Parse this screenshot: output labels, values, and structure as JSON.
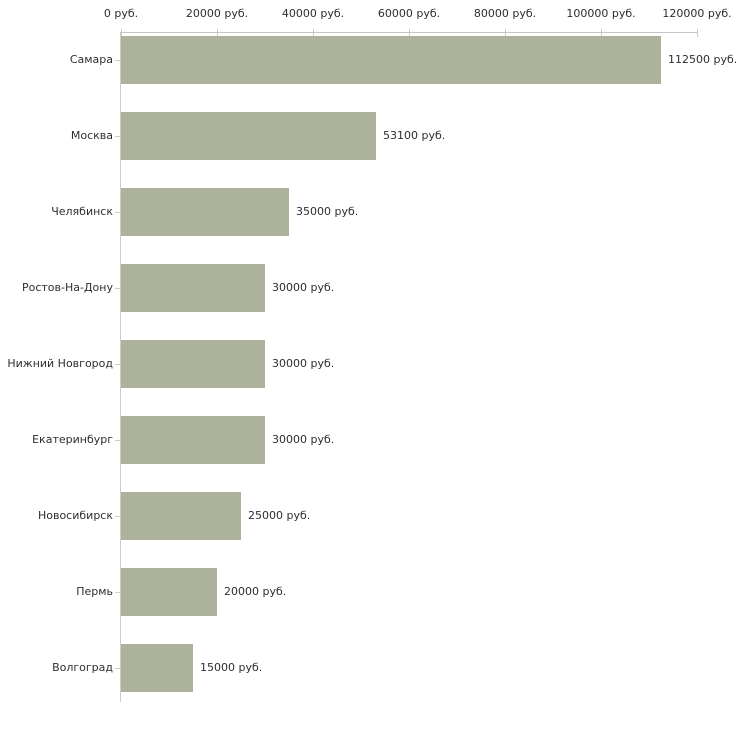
{
  "chart_data": {
    "type": "bar",
    "orientation": "horizontal",
    "title": "",
    "xlabel": "",
    "ylabel": "",
    "grid": false,
    "categories": [
      "Самара",
      "Москва",
      "Челябинск",
      "Ростов-На-Дону",
      "Нижний Новгород",
      "Екатеринбург",
      "Новосибирск",
      "Пермь",
      "Волгоград"
    ],
    "values": [
      112500,
      53100,
      35000,
      30000,
      30000,
      30000,
      25000,
      20000,
      15000
    ],
    "value_labels": [
      "112500 руб.",
      "53100 руб.",
      "35000 руб.",
      "30000 руб.",
      "30000 руб.",
      "30000 руб.",
      "25000 руб.",
      "20000 руб.",
      "15000 руб."
    ],
    "x_axis": {
      "position": "top",
      "xlim": [
        0,
        120000
      ],
      "ticks": [
        0,
        20000,
        40000,
        60000,
        80000,
        100000,
        120000
      ],
      "tick_labels": [
        "0 руб.",
        "20000 руб.",
        "40000 руб.",
        "60000 руб.",
        "80000 руб.",
        "100000 руб.",
        "120000 руб."
      ]
    },
    "legend": null
  },
  "colors": {
    "bar": "#adb39a",
    "axis_line": "#c6c6c6",
    "x_tick": "#ccd0a4",
    "y_axis": "#cccccc",
    "text": "#2e2e2e",
    "background": "#ffffff"
  }
}
